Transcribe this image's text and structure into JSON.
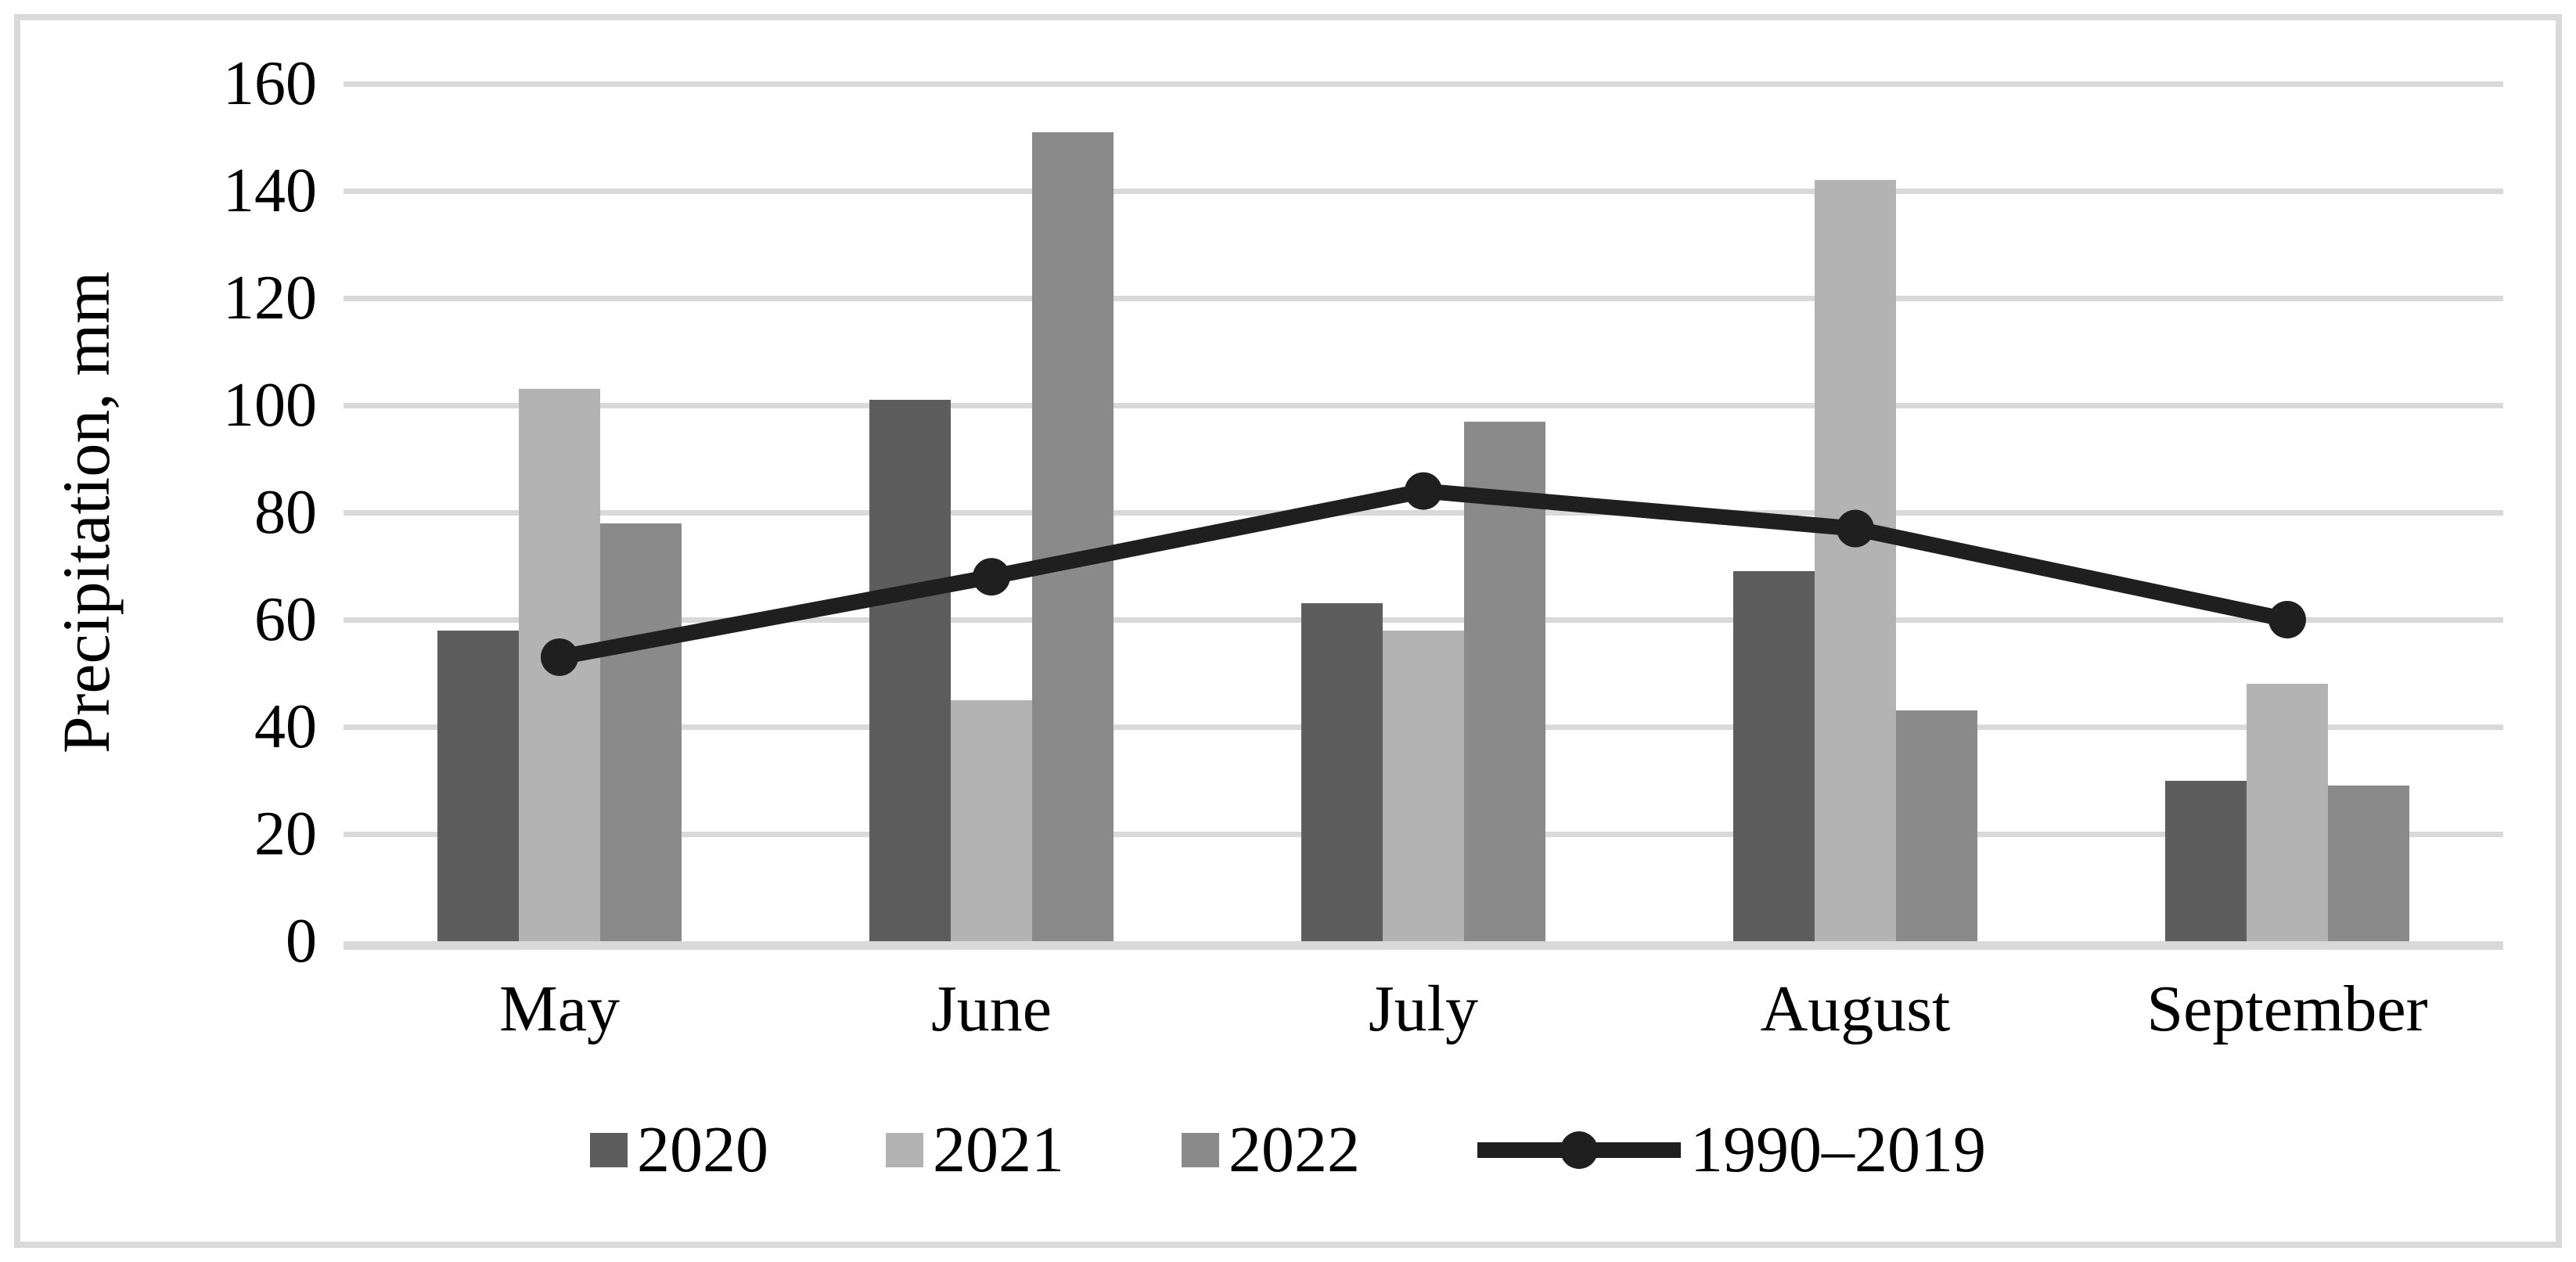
{
  "chart_data": {
    "type": "bar",
    "subtype": "grouped-bars-with-line-overlay",
    "categories": [
      "May",
      "June",
      "July",
      "August",
      "September"
    ],
    "series": [
      {
        "name": "2020",
        "kind": "bar",
        "color_key": "bar_2020",
        "values": [
          58,
          101,
          63,
          69,
          30
        ]
      },
      {
        "name": "2021",
        "kind": "bar",
        "color_key": "bar_2021",
        "values": [
          103,
          45,
          58,
          142,
          48
        ]
      },
      {
        "name": "2022",
        "kind": "bar",
        "color_key": "bar_2022",
        "values": [
          78,
          151,
          97,
          43,
          29
        ]
      },
      {
        "name": "1990–2019",
        "kind": "line",
        "color_key": "line",
        "values": [
          53,
          68,
          84,
          77,
          60
        ]
      }
    ],
    "title": "",
    "xlabel": "",
    "ylabel": "Precipitation, mm",
    "ylim": [
      0,
      160
    ],
    "ytick_step": 20,
    "grid": true,
    "legend_position": "bottom"
  },
  "colors": {
    "bar_2020": "#5d5d5d",
    "bar_2021": "#b3b3b3",
    "bar_2022": "#8a8a8a",
    "line": "#1f1f1f",
    "gridline": "#d9d9d9",
    "axis_line": "#d9d9d9",
    "border": "#d9d9d9",
    "text": "#000000"
  }
}
